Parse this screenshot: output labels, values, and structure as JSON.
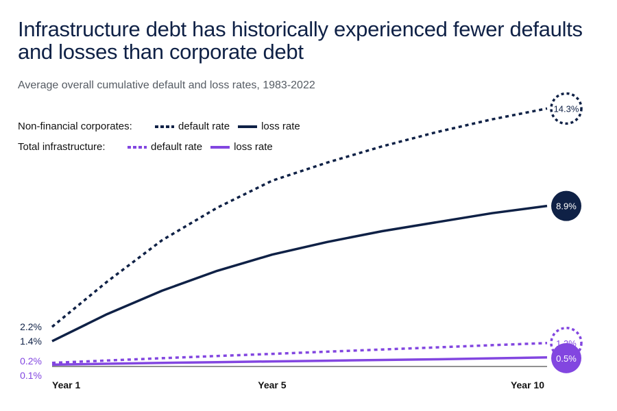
{
  "title": "Infrastructure debt has historically experienced fewer defaults and losses than corporate debt",
  "subtitle": "Average overall cumulative default and loss rates, 1983-2022",
  "legend": {
    "group1_label": "Non-financial corporates:",
    "group2_label": "Total infrastructure:",
    "default_label": "default rate",
    "loss_label": "loss rate"
  },
  "colors": {
    "navy": "#0f2146",
    "purple": "#8246e0"
  },
  "chart_data": {
    "type": "line",
    "x": [
      1,
      2,
      3,
      4,
      5,
      6,
      7,
      8,
      9,
      10
    ],
    "x_tick_labels": [
      {
        "x": 1,
        "label": "Year 1"
      },
      {
        "x": 5,
        "label": "Year 5"
      },
      {
        "x": 10,
        "label": "Year 10"
      }
    ],
    "ylim": [
      0,
      15
    ],
    "series": [
      {
        "name": "Non-financial corporates: default rate",
        "style": "dotted",
        "color": "#0f2146",
        "values": [
          2.2,
          4.7,
          7.0,
          8.8,
          10.3,
          11.3,
          12.2,
          13.0,
          13.7,
          14.3
        ],
        "start_label": "2.2%",
        "end_label": "14.3%"
      },
      {
        "name": "Non-financial corporates: loss rate",
        "style": "solid",
        "color": "#0f2146",
        "values": [
          1.4,
          2.9,
          4.2,
          5.3,
          6.2,
          6.9,
          7.5,
          8.0,
          8.5,
          8.9
        ],
        "start_label": "1.4%",
        "end_label": "8.9%"
      },
      {
        "name": "Total infrastructure: default rate",
        "style": "dotted",
        "color": "#8246e0",
        "values": [
          0.2,
          0.33,
          0.46,
          0.58,
          0.7,
          0.82,
          0.94,
          1.06,
          1.18,
          1.3
        ],
        "start_label": "0.2%",
        "end_label": "1.3%"
      },
      {
        "name": "Total infrastructure: loss rate",
        "style": "solid",
        "color": "#8246e0",
        "values": [
          0.1,
          0.15,
          0.2,
          0.24,
          0.28,
          0.32,
          0.36,
          0.4,
          0.45,
          0.5
        ],
        "start_label": "0.1%",
        "end_label": "0.5%"
      }
    ]
  }
}
